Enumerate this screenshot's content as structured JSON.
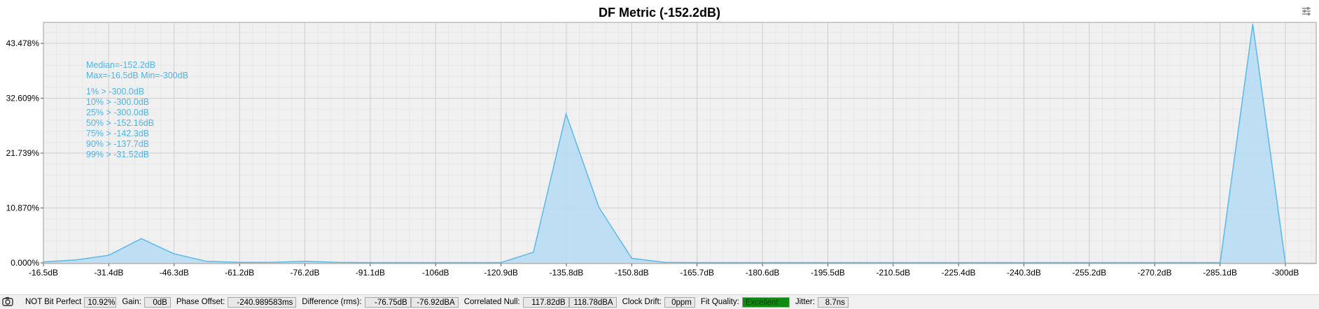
{
  "chart_data": {
    "type": "area",
    "title": "DF Metric  (-152.2dB)",
    "x_ticks": [
      "-16.5dB",
      "-31.4dB",
      "-46.3dB",
      "-61.2dB",
      "-76.2dB",
      "-91.1dB",
      "-106dB",
      "-120.9dB",
      "-135.8dB",
      "-150.8dB",
      "-165.7dB",
      "-180.6dB",
      "-195.5dB",
      "-210.5dB",
      "-225.4dB",
      "-240.3dB",
      "-255.2dB",
      "-270.2dB",
      "-285.1dB",
      "-300dB"
    ],
    "y_ticks": [
      "0.000%",
      "10.870%",
      "21.739%",
      "32.609%",
      "43.478%"
    ],
    "ylim": [
      0,
      47.5
    ],
    "xlim": [
      -16.5,
      -300
    ],
    "grid": true,
    "series": [
      {
        "x": [
          -16.5,
          -23.95,
          -31.4,
          -38.85,
          -46.3,
          -53.75,
          -61.2,
          -68.7,
          -76.2,
          -83.65,
          -91.1,
          -98.55,
          -106,
          -113.45,
          -120.9,
          -128.35,
          -135.8,
          -143.3,
          -150.8,
          -158.25,
          -165.7,
          -173.15,
          -180.6,
          -188.05,
          -195.5,
          -203,
          -210.5,
          -217.95,
          -225.4,
          -232.85,
          -240.3,
          -247.75,
          -255.2,
          -262.7,
          -270.2,
          -277.65,
          -285.1,
          -292.55,
          -300
        ],
        "values": [
          0.2,
          0.6,
          1.5,
          4.8,
          1.8,
          0.3,
          0.1,
          0.1,
          0.3,
          0.1,
          0.05,
          0.05,
          0.05,
          0.05,
          0.05,
          2.1,
          29.5,
          11.0,
          0.9,
          0.1,
          0.05,
          0.05,
          0.05,
          0.05,
          0.05,
          0.05,
          0.05,
          0.05,
          0.05,
          0.05,
          0.05,
          0.05,
          0.05,
          0.05,
          0.05,
          0.05,
          0.05,
          47.3,
          0
        ]
      }
    ],
    "stats": [
      "Median=-152.2dB",
      "Max=-16.5dB Min=-300dB",
      "",
      "1% > -300.0dB",
      "10% > -300.0dB",
      "25% > -300.0dB",
      "50% > -152.16dB",
      "75% > -142.3dB",
      "90% > -137.7dB",
      "99% > -31.52dB"
    ],
    "colors": {
      "line": "#5bb8ec",
      "fill": "#b8dcf4",
      "grid": "#cfcfcf",
      "minor_grid": "#e8e8e8",
      "plot_bg": "#f0f0f0"
    }
  },
  "statusbar": {
    "camera_icon": "camera-icon",
    "bitperfect_label": "NOT Bit Perfect",
    "bitperfect_value": "10.92%",
    "gain_label": "Gain:",
    "gain_value": "0dB",
    "phase_label": "Phase Offset:",
    "phase_value": "-240.989583ms",
    "diff_label": "Difference (rms):",
    "diff_value1": "-76.75dB",
    "diff_value2": "-76.92dBA",
    "null_label": "Correlated Null:",
    "null_value1": "117.82dB",
    "null_value2": "118.78dBA",
    "drift_label": "Clock Drift:",
    "drift_value": "0ppm",
    "fit_label": "Fit Quality:",
    "fit_value": "Excellent",
    "jitter_label": "Jitter:",
    "jitter_value": "8.7ns"
  },
  "settings_icon": "sliders-icon"
}
